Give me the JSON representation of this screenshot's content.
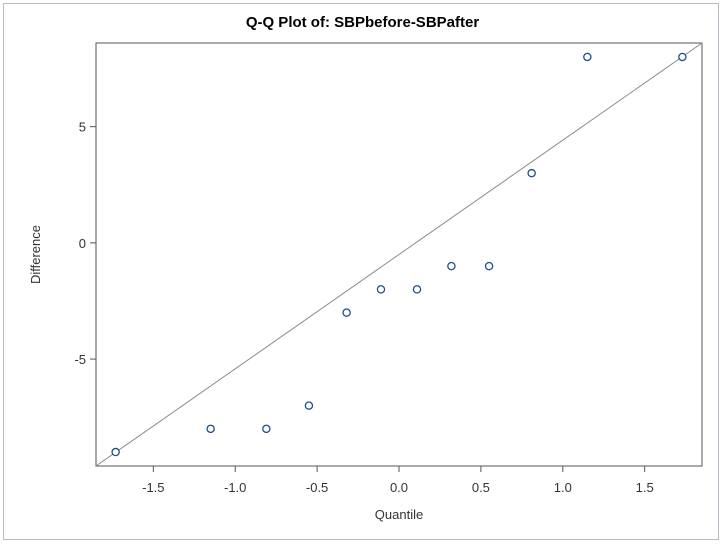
{
  "chart_data": {
    "type": "scatter",
    "title": "Q-Q Plot of: SBPbefore-SBPafter",
    "xlabel": "Quantile",
    "ylabel": "Difference",
    "xlim": [
      -1.85,
      1.85
    ],
    "ylim": [
      -9.6,
      8.6
    ],
    "xticks": [
      -1.5,
      -1.0,
      -0.5,
      0.0,
      0.5,
      1.0,
      1.5
    ],
    "xtick_labels": [
      "-1.5",
      "-1.0",
      "-0.5",
      "0.0",
      "0.5",
      "1.0",
      "1.5"
    ],
    "yticks": [
      -5,
      0,
      5
    ],
    "ytick_labels": [
      "-5",
      "0",
      "5"
    ],
    "grid": false,
    "points": [
      {
        "x": -1.73,
        "y": -9
      },
      {
        "x": -1.15,
        "y": -8
      },
      {
        "x": -0.81,
        "y": -8
      },
      {
        "x": -0.55,
        "y": -7
      },
      {
        "x": -0.32,
        "y": -3
      },
      {
        "x": -0.11,
        "y": -2
      },
      {
        "x": 0.11,
        "y": -2
      },
      {
        "x": 0.32,
        "y": -1
      },
      {
        "x": 0.55,
        "y": -1
      },
      {
        "x": 0.81,
        "y": 3
      },
      {
        "x": 1.15,
        "y": 8
      },
      {
        "x": 1.73,
        "y": 8
      }
    ],
    "reference_line": {
      "x0": -1.85,
      "y0": -9.6,
      "x1": 1.85,
      "y1": 8.6
    },
    "marker_color": "#1f4e8c",
    "line_color": "#8c8c8c",
    "axis_color": "#555555"
  }
}
